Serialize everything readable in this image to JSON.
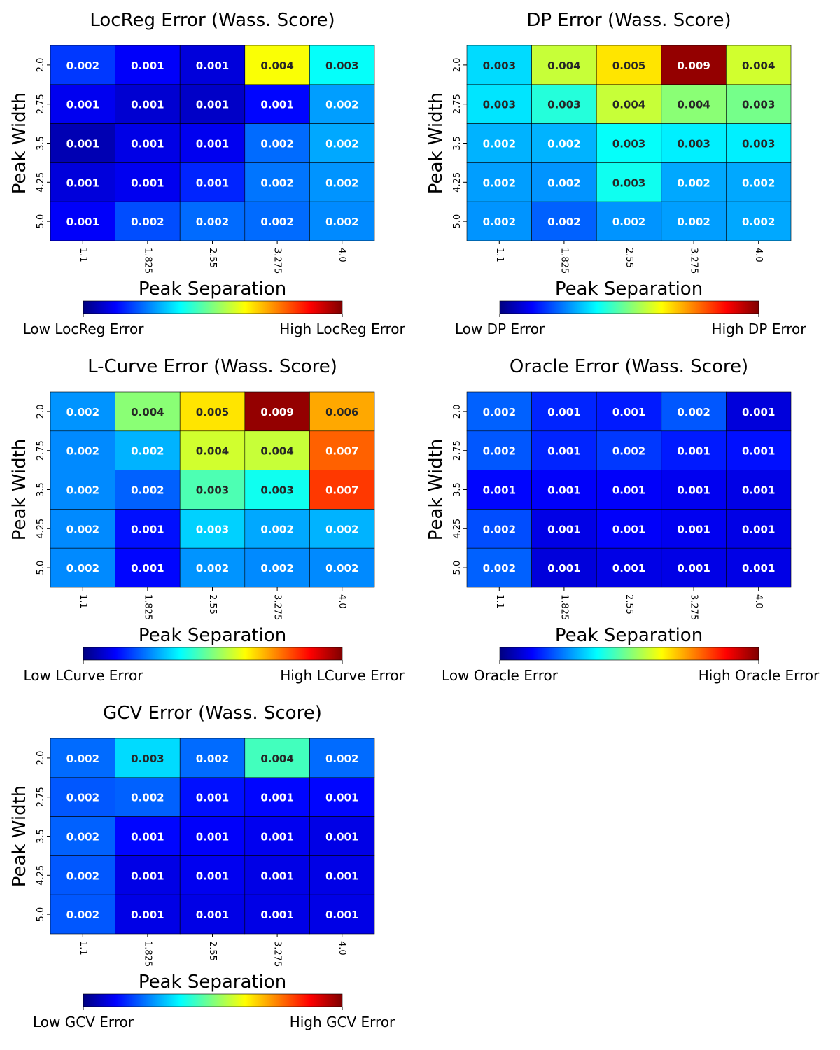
{
  "chart_data": [
    {
      "type": "heatmap",
      "title": "LocReg Error (Wass. Score)",
      "xlabel": "Peak Separation",
      "ylabel": "Peak Width",
      "x_categories": [
        "1.1",
        "1.825",
        "2.55",
        "3.275",
        "4.0"
      ],
      "y_categories": [
        "2.0",
        "2.75",
        "3.5",
        "4.25",
        "5.0"
      ],
      "values": [
        [
          0.002,
          0.001,
          0.001,
          0.004,
          0.003
        ],
        [
          0.001,
          0.001,
          0.001,
          0.001,
          0.002
        ],
        [
          0.001,
          0.001,
          0.001,
          0.002,
          0.002
        ],
        [
          0.001,
          0.001,
          0.001,
          0.002,
          0.002
        ],
        [
          0.001,
          0.002,
          0.002,
          0.002,
          0.002
        ]
      ],
      "color_levels": [
        [
          0.18,
          0.12,
          0.09,
          0.62,
          0.38
        ],
        [
          0.11,
          0.08,
          0.07,
          0.13,
          0.28
        ],
        [
          0.05,
          0.1,
          0.11,
          0.23,
          0.29
        ],
        [
          0.09,
          0.11,
          0.16,
          0.24,
          0.27
        ],
        [
          0.12,
          0.2,
          0.23,
          0.23,
          0.26
        ]
      ],
      "colorbar": {
        "low_label": "Low LocReg Error",
        "high_label": "High LocReg Error",
        "colormap": "jet"
      }
    },
    {
      "type": "heatmap",
      "title": "DP Error (Wass. Score)",
      "xlabel": "Peak Separation",
      "ylabel": "Peak Width",
      "x_categories": [
        "1.1",
        "1.825",
        "2.55",
        "3.275",
        "4.0"
      ],
      "y_categories": [
        "2.0",
        "2.75",
        "3.5",
        "4.25",
        "5.0"
      ],
      "values": [
        [
          0.003,
          0.004,
          0.005,
          0.009,
          0.004
        ],
        [
          0.003,
          0.003,
          0.004,
          0.004,
          0.003
        ],
        [
          0.002,
          0.002,
          0.003,
          0.003,
          0.003
        ],
        [
          0.002,
          0.002,
          0.003,
          0.002,
          0.002
        ],
        [
          0.002,
          0.002,
          0.002,
          0.002,
          0.002
        ]
      ],
      "color_levels": [
        [
          0.34,
          0.57,
          0.65,
          0.98,
          0.58
        ],
        [
          0.35,
          0.41,
          0.57,
          0.51,
          0.49
        ],
        [
          0.3,
          0.3,
          0.38,
          0.36,
          0.36
        ],
        [
          0.28,
          0.27,
          0.39,
          0.29,
          0.29
        ],
        [
          0.27,
          0.22,
          0.27,
          0.28,
          0.29
        ]
      ],
      "colorbar": {
        "low_label": "Low DP Error",
        "high_label": "High DP Error",
        "colormap": "jet"
      }
    },
    {
      "type": "heatmap",
      "title": "L-Curve Error (Wass. Score)",
      "xlabel": "Peak Separation",
      "ylabel": "Peak Width",
      "x_categories": [
        "1.1",
        "1.825",
        "2.55",
        "3.275",
        "4.0"
      ],
      "y_categories": [
        "2.0",
        "2.75",
        "3.5",
        "4.25",
        "5.0"
      ],
      "values": [
        [
          0.002,
          0.004,
          0.005,
          0.009,
          0.006
        ],
        [
          0.002,
          0.002,
          0.004,
          0.004,
          0.007
        ],
        [
          0.002,
          0.002,
          0.003,
          0.003,
          0.007
        ],
        [
          0.002,
          0.001,
          0.003,
          0.002,
          0.002
        ],
        [
          0.002,
          0.001,
          0.002,
          0.002,
          0.002
        ]
      ],
      "color_levels": [
        [
          0.27,
          0.51,
          0.65,
          0.98,
          0.71
        ],
        [
          0.26,
          0.3,
          0.58,
          0.57,
          0.78
        ],
        [
          0.26,
          0.22,
          0.45,
          0.39,
          0.82
        ],
        [
          0.26,
          0.14,
          0.33,
          0.29,
          0.3
        ],
        [
          0.26,
          0.13,
          0.27,
          0.26,
          0.26
        ]
      ],
      "colorbar": {
        "low_label": "Low LCurve Error",
        "high_label": "High LCurve Error",
        "colormap": "jet"
      }
    },
    {
      "type": "heatmap",
      "title": "Oracle Error (Wass. Score)",
      "xlabel": "Peak Separation",
      "ylabel": "Peak Width",
      "x_categories": [
        "1.1",
        "1.825",
        "2.55",
        "3.275",
        "4.0"
      ],
      "y_categories": [
        "2.0",
        "2.75",
        "3.5",
        "4.25",
        "5.0"
      ],
      "values": [
        [
          0.002,
          0.001,
          0.001,
          0.002,
          0.001
        ],
        [
          0.002,
          0.001,
          0.002,
          0.001,
          0.001
        ],
        [
          0.001,
          0.001,
          0.001,
          0.001,
          0.001
        ],
        [
          0.002,
          0.001,
          0.001,
          0.001,
          0.001
        ],
        [
          0.002,
          0.001,
          0.001,
          0.001,
          0.001
        ]
      ],
      "color_levels": [
        [
          0.22,
          0.16,
          0.15,
          0.21,
          0.09
        ],
        [
          0.21,
          0.16,
          0.18,
          0.15,
          0.14
        ],
        [
          0.13,
          0.12,
          0.12,
          0.11,
          0.1
        ],
        [
          0.2,
          0.1,
          0.12,
          0.11,
          0.1
        ],
        [
          0.22,
          0.09,
          0.1,
          0.1,
          0.1
        ]
      ],
      "colorbar": {
        "low_label": "Low Oracle Error",
        "high_label": "High Oracle Error",
        "colormap": "jet"
      }
    },
    {
      "type": "heatmap",
      "title": "GCV Error (Wass. Score)",
      "xlabel": "Peak Separation",
      "ylabel": "Peak Width",
      "x_categories": [
        "1.1",
        "1.825",
        "2.55",
        "3.275",
        "4.0"
      ],
      "y_categories": [
        "2.0",
        "2.75",
        "3.5",
        "4.25",
        "5.0"
      ],
      "values": [
        [
          0.002,
          0.003,
          0.002,
          0.004,
          0.002
        ],
        [
          0.002,
          0.002,
          0.001,
          0.001,
          0.001
        ],
        [
          0.002,
          0.001,
          0.001,
          0.001,
          0.001
        ],
        [
          0.002,
          0.001,
          0.001,
          0.001,
          0.001
        ],
        [
          0.002,
          0.001,
          0.001,
          0.001,
          0.001
        ]
      ],
      "color_levels": [
        [
          0.23,
          0.34,
          0.23,
          0.44,
          0.23
        ],
        [
          0.21,
          0.22,
          0.14,
          0.13,
          0.13
        ],
        [
          0.22,
          0.13,
          0.12,
          0.11,
          0.1
        ],
        [
          0.21,
          0.1,
          0.11,
          0.1,
          0.1
        ],
        [
          0.21,
          0.1,
          0.1,
          0.1,
          0.1
        ]
      ],
      "colorbar": {
        "low_label": "Low GCV Error",
        "high_label": "High GCV Error",
        "colormap": "jet"
      }
    }
  ]
}
